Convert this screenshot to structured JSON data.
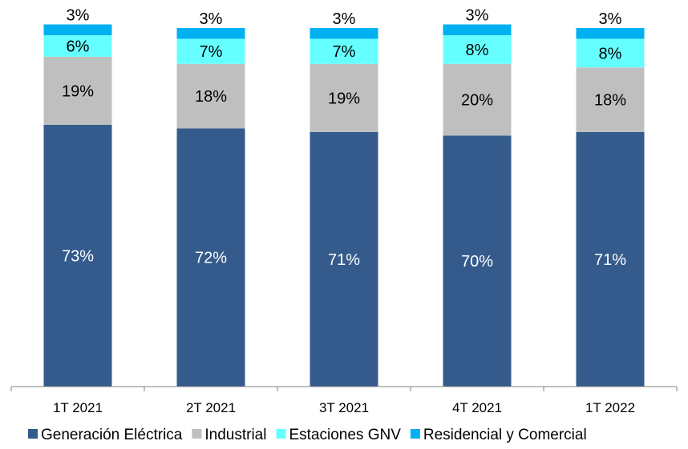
{
  "chart_data": {
    "type": "bar",
    "stacked": true,
    "categories": [
      "1T 2021",
      "2T 2021",
      "3T 2021",
      "4T 2021",
      "1T 2022"
    ],
    "series": [
      {
        "name": "Generación Eléctrica",
        "values": [
          73,
          72,
          71,
          70,
          71
        ],
        "color": "#345B8C",
        "label_color": "#ffffff"
      },
      {
        "name": "Industrial",
        "values": [
          19,
          18,
          19,
          20,
          18
        ],
        "color": "#BFBFBF",
        "label_color": "#000000"
      },
      {
        "name": "Estaciones GNV",
        "values": [
          6,
          7,
          7,
          8,
          8
        ],
        "color": "#66FFFF",
        "label_color": "#000000"
      },
      {
        "name": "Residencial y Comercial",
        "values": [
          3,
          3,
          3,
          3,
          3
        ],
        "color": "#00B0F0",
        "label_color": "#000000"
      }
    ],
    "value_suffix": "%",
    "ylim": [
      0,
      100
    ],
    "grid": false,
    "legend_position": "bottom"
  }
}
